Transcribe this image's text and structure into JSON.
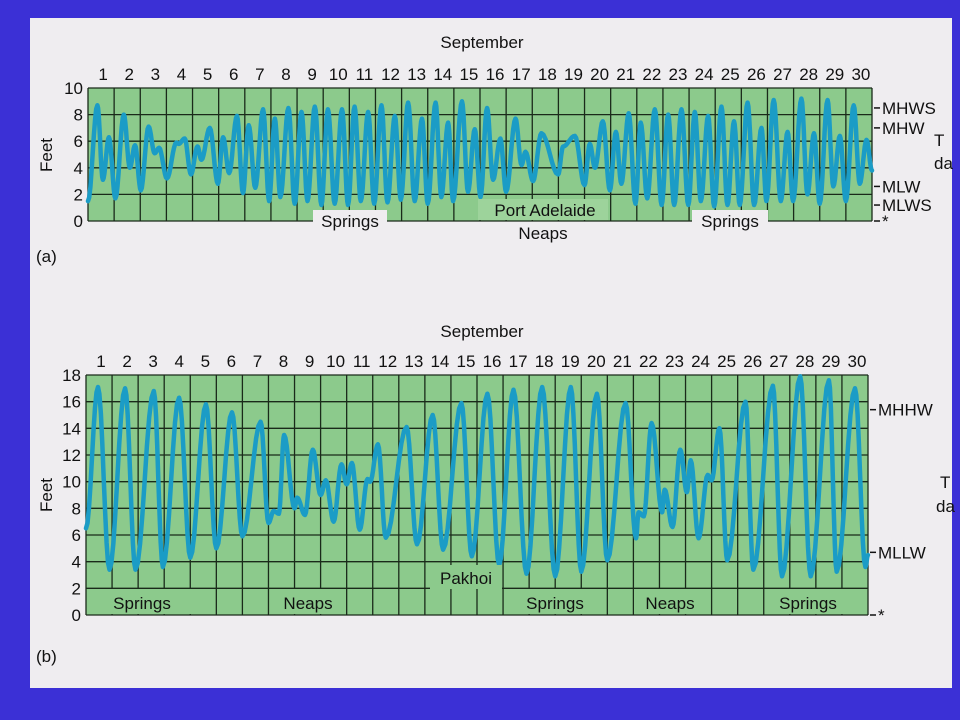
{
  "colors": {
    "background": "#3b30d6",
    "panel": "#efedf0",
    "plot_fill": "#8cca8c",
    "label_box": "#9dd39b",
    "tide_line": "#1b9cc6",
    "grid": "#1a2a1a"
  },
  "chart_data": [
    {
      "type": "line",
      "panel_label": "(a)",
      "title": "September",
      "station": "Port Adelaide",
      "xlabel": "",
      "ylabel": "Feet",
      "xlim": [
        0,
        30
      ],
      "ylim": [
        0,
        10
      ],
      "yticks": [
        0,
        2,
        4,
        6,
        8,
        10
      ],
      "day_labels": [
        "1",
        "2",
        "3",
        "4",
        "5",
        "6",
        "7",
        "8",
        "9",
        "10",
        "11",
        "12",
        "13",
        "14",
        "15",
        "16",
        "17",
        "18",
        "19",
        "20",
        "21",
        "22",
        "23",
        "24",
        "25",
        "26",
        "27",
        "28",
        "29",
        "30"
      ],
      "grid": true,
      "reference_levels": [
        {
          "name": "MHWS",
          "value": 8.5
        },
        {
          "name": "MHW",
          "value": 7.0
        },
        {
          "name": "MLW",
          "value": 2.6
        },
        {
          "name": "MLWS",
          "value": 1.2
        },
        {
          "name": "*",
          "value": 0
        }
      ],
      "annotations": {
        "springs_1": "Springs",
        "neaps": "Neaps",
        "springs_2": "Springs"
      },
      "cutoff_text": [
        "T",
        "da"
      ],
      "series": [
        {
          "name": "Tide height",
          "extremes": [
            [
              0,
              1.5
            ],
            [
              0.36,
              8.7
            ],
            [
              0.57,
              3.1
            ],
            [
              0.8,
              6.3
            ],
            [
              1.05,
              1.7
            ],
            [
              1.37,
              8.0
            ],
            [
              1.6,
              4.0
            ],
            [
              1.8,
              5.7
            ],
            [
              2.02,
              2.3
            ],
            [
              2.32,
              7.1
            ],
            [
              2.55,
              5.1
            ],
            [
              2.72,
              5.5
            ],
            [
              3.02,
              3.2
            ],
            [
              3.38,
              5.9
            ],
            [
              3.47,
              5.8
            ],
            [
              3.7,
              6.2
            ],
            [
              3.94,
              3.5
            ],
            [
              4.19,
              5.6
            ],
            [
              4.34,
              4.6
            ],
            [
              4.66,
              7.0
            ],
            [
              4.97,
              2.8
            ],
            [
              5.17,
              6.3
            ],
            [
              5.4,
              3.6
            ],
            [
              5.7,
              7.9
            ],
            [
              5.93,
              2.1
            ],
            [
              6.15,
              7.2
            ],
            [
              6.4,
              2.5
            ],
            [
              6.7,
              8.4
            ],
            [
              6.93,
              1.5
            ],
            [
              7.15,
              7.7
            ],
            [
              7.36,
              1.8
            ],
            [
              7.67,
              8.5
            ],
            [
              7.91,
              1.3
            ],
            [
              8.17,
              8.2
            ],
            [
              8.4,
              1.5
            ],
            [
              8.68,
              8.6
            ],
            [
              8.93,
              1.2
            ],
            [
              9.18,
              8.4
            ],
            [
              9.44,
              1.3
            ],
            [
              9.72,
              8.4
            ],
            [
              9.95,
              1.2
            ],
            [
              10.2,
              8.6
            ],
            [
              10.44,
              1.5
            ],
            [
              10.72,
              8.2
            ],
            [
              10.95,
              1.3
            ],
            [
              11.23,
              8.7
            ],
            [
              11.46,
              1.4
            ],
            [
              11.74,
              7.9
            ],
            [
              11.97,
              1.6
            ],
            [
              12.25,
              8.9
            ],
            [
              12.5,
              1.5
            ],
            [
              12.78,
              7.7
            ],
            [
              13.0,
              1.3
            ],
            [
              13.3,
              8.9
            ],
            [
              13.52,
              1.8
            ],
            [
              13.78,
              7.4
            ],
            [
              13.97,
              1.5
            ],
            [
              14.31,
              9.0
            ],
            [
              14.54,
              2.2
            ],
            [
              14.8,
              6.9
            ],
            [
              15.02,
              1.8
            ],
            [
              15.27,
              8.5
            ],
            [
              15.5,
              3.1
            ],
            [
              15.78,
              6.2
            ],
            [
              16.0,
              2.2
            ],
            [
              16.36,
              7.7
            ],
            [
              16.59,
              4.2
            ],
            [
              16.74,
              5.2
            ],
            [
              17.03,
              3.0
            ],
            [
              17.35,
              6.6
            ],
            [
              17.99,
              3.5
            ],
            [
              18.18,
              5.6
            ],
            [
              18.63,
              6.4
            ],
            [
              19.0,
              2.7
            ],
            [
              19.2,
              5.8
            ],
            [
              19.4,
              4.0
            ],
            [
              19.7,
              7.5
            ],
            [
              19.97,
              2.3
            ],
            [
              20.2,
              6.7
            ],
            [
              20.41,
              2.8
            ],
            [
              20.69,
              8.1
            ],
            [
              20.95,
              1.3
            ],
            [
              21.15,
              7.4
            ],
            [
              21.4,
              1.7
            ],
            [
              21.69,
              8.4
            ],
            [
              21.95,
              1.2
            ],
            [
              22.2,
              8.0
            ],
            [
              22.43,
              1.2
            ],
            [
              22.71,
              8.4
            ],
            [
              22.97,
              1.2
            ],
            [
              23.22,
              8.2
            ],
            [
              23.45,
              1.5
            ],
            [
              23.73,
              7.9
            ],
            [
              23.96,
              1.1
            ],
            [
              24.24,
              8.6
            ],
            [
              24.47,
              1.2
            ],
            [
              24.72,
              7.5
            ],
            [
              24.94,
              1.2
            ],
            [
              25.24,
              8.9
            ],
            [
              25.49,
              1.2
            ],
            [
              25.77,
              7.0
            ],
            [
              25.96,
              1.5
            ],
            [
              26.24,
              9.1
            ],
            [
              26.51,
              1.5
            ],
            [
              26.77,
              6.7
            ],
            [
              26.98,
              1.5
            ],
            [
              27.3,
              9.2
            ],
            [
              27.53,
              2.0
            ],
            [
              27.78,
              6.6
            ],
            [
              28.0,
              1.3
            ],
            [
              28.3,
              9.1
            ],
            [
              28.52,
              2.6
            ],
            [
              28.77,
              6.4
            ],
            [
              29.0,
              1.5
            ],
            [
              29.3,
              8.7
            ],
            [
              29.53,
              2.8
            ],
            [
              29.79,
              6.1
            ],
            [
              30,
              3.8
            ]
          ]
        }
      ]
    },
    {
      "type": "line",
      "panel_label": "(b)",
      "title": "September",
      "station": "Pakhoi",
      "xlabel": "",
      "ylabel": "Feet",
      "xlim": [
        0,
        30
      ],
      "ylim": [
        0,
        18
      ],
      "yticks": [
        0,
        2,
        4,
        6,
        8,
        10,
        12,
        14,
        16,
        18
      ],
      "day_labels": [
        "1",
        "2",
        "3",
        "4",
        "5",
        "6",
        "7",
        "8",
        "9",
        "10",
        "11",
        "12",
        "13",
        "14",
        "15",
        "16",
        "17",
        "18",
        "19",
        "20",
        "21",
        "22",
        "23",
        "24",
        "25",
        "26",
        "27",
        "28",
        "29",
        "30"
      ],
      "grid": true,
      "reference_levels": [
        {
          "name": "MHHW",
          "value": 15.4
        },
        {
          "name": "MLLW",
          "value": 4.7
        },
        {
          "name": "*",
          "value": 0
        }
      ],
      "annotations": {
        "springs_1": "Springs",
        "neaps_1": "Neaps",
        "springs_2": "Springs",
        "neaps_2": "Neaps",
        "springs_3": "Springs"
      },
      "cutoff_text": [
        "T",
        "da"
      ],
      "series": [
        {
          "name": "Tide height",
          "extremes": [
            [
              0,
              6.5
            ],
            [
              0.46,
              17.1
            ],
            [
              0.9,
              3.4
            ],
            [
              1.5,
              17.0
            ],
            [
              1.9,
              3.4
            ],
            [
              2.6,
              16.8
            ],
            [
              2.95,
              3.6
            ],
            [
              3.57,
              16.3
            ],
            [
              4.0,
              4.3
            ],
            [
              4.6,
              15.8
            ],
            [
              5.0,
              5.0
            ],
            [
              5.6,
              15.2
            ],
            [
              6.0,
              5.9
            ],
            [
              6.7,
              14.5
            ],
            [
              7.0,
              6.9
            ],
            [
              7.2,
              7.8
            ],
            [
              7.4,
              7.6
            ],
            [
              7.6,
              13.5
            ],
            [
              8.0,
              8.0
            ],
            [
              8.1,
              8.8
            ],
            [
              8.4,
              7.5
            ],
            [
              8.7,
              12.4
            ],
            [
              9.0,
              9.0
            ],
            [
              9.2,
              10.1
            ],
            [
              9.5,
              7.0
            ],
            [
              9.8,
              11.3
            ],
            [
              10.0,
              9.8
            ],
            [
              10.2,
              11.4
            ],
            [
              10.5,
              6.4
            ],
            [
              10.8,
              10.2
            ],
            [
              10.9,
              10.0
            ],
            [
              11.2,
              12.8
            ],
            [
              11.5,
              5.8
            ],
            [
              12.3,
              14.1
            ],
            [
              12.7,
              5.3
            ],
            [
              13.3,
              15.0
            ],
            [
              13.7,
              4.9
            ],
            [
              14.4,
              15.9
            ],
            [
              14.8,
              4.4
            ],
            [
              15.4,
              16.6
            ],
            [
              15.85,
              3.75
            ],
            [
              16.4,
              16.9
            ],
            [
              16.9,
              3.1
            ],
            [
              17.5,
              17.1
            ],
            [
              18.0,
              2.9
            ],
            [
              18.6,
              17.1
            ],
            [
              19.0,
              3.25
            ],
            [
              19.6,
              16.6
            ],
            [
              20.0,
              4.1
            ],
            [
              20.7,
              15.9
            ],
            [
              21.1,
              5.75
            ],
            [
              21.2,
              7.7
            ],
            [
              21.4,
              7.4
            ],
            [
              21.7,
              14.4
            ],
            [
              22.1,
              7.7
            ],
            [
              22.2,
              9.4
            ],
            [
              22.5,
              6.6
            ],
            [
              22.8,
              12.4
            ],
            [
              23.05,
              9.2
            ],
            [
              23.2,
              11.6
            ],
            [
              23.5,
              5.75
            ],
            [
              23.85,
              10.5
            ],
            [
              24.0,
              10.1
            ],
            [
              24.3,
              14.0
            ],
            [
              24.6,
              4.1
            ],
            [
              25.3,
              16.0
            ],
            [
              25.6,
              3.4
            ],
            [
              26.35,
              17.2
            ],
            [
              26.7,
              2.9
            ],
            [
              27.4,
              17.9
            ],
            [
              27.8,
              2.9
            ],
            [
              28.5,
              17.6
            ],
            [
              28.8,
              3.25
            ],
            [
              29.5,
              17.0
            ],
            [
              29.9,
              3.6
            ],
            [
              30,
              4.5
            ]
          ]
        }
      ]
    }
  ]
}
